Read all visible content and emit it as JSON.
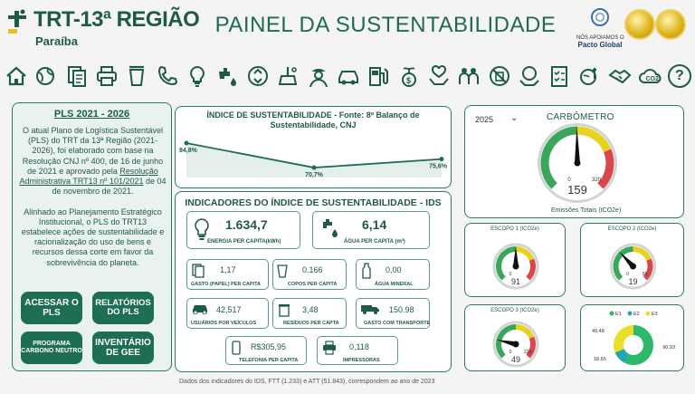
{
  "header": {
    "logo_title": "TRT-13ª REGIÃO",
    "logo_sub": "Paraíba",
    "page_title": "PAINEL DA SUSTENTABILIDADE",
    "pacto_line1": "NÓS APOIAMOS O",
    "pacto_line2": "Pacto Global"
  },
  "nav_icons": [
    "home-icon",
    "globe-leaf-icon",
    "documents-icon",
    "printer-icon",
    "cup-icon",
    "phone-icon",
    "lightbulb-icon",
    "water-tap-icon",
    "recycle-icon",
    "cleaning-icon",
    "security-guard-icon",
    "car-icon",
    "fuel-pump-icon",
    "plant-money-icon",
    "heart-hands-icon",
    "people-icon",
    "no-waste-icon",
    "globe-hands-icon",
    "checklist-icon",
    "climate-icon",
    "handshake-icon",
    "co2-cloud-icon"
  ],
  "pls": {
    "title": "PLS 2021 - 2026",
    "p1": "O atual Plano de Logística Sustentável (PLS) do TRT da 13ª Região (2021-2026), foi elaborado com base na Resolução CNJ nº 400, de 16 de junho de 2021 e aprovado pela",
    "p1_link": "Resolução Administrativa TRT13 nº 101/2021",
    "p1_end": " de 04 de novembro de 2021.",
    "p2": "Alinhado ao Planejamento Estratégico Institucional, o PLS do TRT13 estabelece ações de sustentabilidade e racionalização do uso de bens e recursos dessa corte em favor da sobrevivência do planeta.",
    "btn_acessar": "ACESSAR O PLS",
    "btn_relatorios": "RELATÓRIOS DO PLS",
    "btn_programa": "PROGRAMA CARBONO NEUTRO",
    "btn_inventario": "INVENTÁRIO DE GEE"
  },
  "ids": {
    "title": "ÍNDICE DE SUSTENTABILIDADE - Fonte: 8º Balanço de Sustentabilidade, CNJ",
    "chart_data": {
      "type": "line",
      "values": [
        84.8,
        70.7,
        75.6
      ],
      "labels": [
        "84,8%",
        "70,7%",
        "75,6%"
      ],
      "ylim": [
        65,
        90
      ]
    }
  },
  "indicators": {
    "title": "INDICADORES DO ÍNDICE DE SUSTENTABILIDADE - IDS",
    "energia_val": "1.634,7",
    "energia_lbl": "ENERGIA PER CAPITA(kWh)",
    "agua_val": "6,14",
    "agua_lbl": "ÁGUA PER CAPITA (m³)",
    "papel_val": "1,17",
    "papel_lbl": "GASTO (PAPEL) PER CAPITA",
    "copos_val": "0.166",
    "copos_lbl": "COPOS PER CAPITA",
    "agua_mineral_val": "0,00",
    "agua_mineral_lbl": "ÁGUA MINERAL",
    "veiculos_val": "42,517",
    "veiculos_lbl": "USUÁRIOS POR VEÍCULOS",
    "residuos_val": "3,48",
    "residuos_lbl": "RESÍDUOS PER CAPTA",
    "transporte_val": "150.98",
    "transporte_lbl": "GASTO COM TRANSPORTE",
    "telefonia_val": "R$305,95",
    "telefonia_lbl": "TELEFONIA PER CAPITA",
    "impressoras_val": "0,118",
    "impressoras_lbl": "IMPRESSORAS"
  },
  "footnote": "Dados dos indicadores do IDS, FTT (1.233) e ATT (51.843), correspondem ao ano de 2023",
  "carbometro": {
    "year": "2025",
    "title": "CARBÔMETRO",
    "value": "159",
    "min": "0",
    "max": "320",
    "footer": "Emissões Totais (tCO2e)",
    "value_num": 159,
    "max_num": 320
  },
  "escopos": [
    {
      "title": "ESCOPO 1 (tCO2e)",
      "value": "91",
      "min": "0",
      "max": "",
      "value_num": 91,
      "max_num": 182
    },
    {
      "title": "ESCOPO 2 (tCO2e)",
      "value": "19",
      "min": "0",
      "max": "56",
      "value_num": 19,
      "max_num": 56
    },
    {
      "title": "ESCOPO 3 (tCO2e)",
      "value": "49",
      "min": "0",
      "max": "229",
      "value_num": 49,
      "max_num": 229
    }
  ],
  "donut": {
    "chart_data": {
      "type": "pie",
      "legend": [
        "E1",
        "E2",
        "E3"
      ],
      "values": [
        90.93,
        18.65,
        49.48
      ],
      "labels": [
        "90,93",
        "18,65",
        "49,48"
      ],
      "colors": [
        "#2eb86a",
        "#22a6b0",
        "#e8df2a"
      ]
    }
  },
  "colors": {
    "brand_green": "#1e5b45",
    "button_green": "#1e6e51",
    "gauge_green": "#3aa65a",
    "gauge_yellow": "#e7d21f",
    "gauge_red": "#d9464b"
  }
}
